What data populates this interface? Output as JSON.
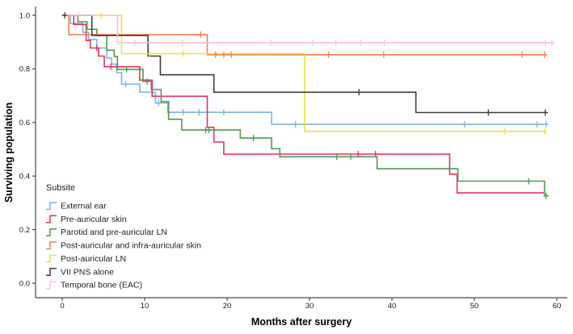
{
  "figure": {
    "background": "#ffffff",
    "axis_color": "#4a4a4a"
  },
  "chart_data": {
    "type": "line",
    "subtype": "kaplan-meier-step",
    "title": "",
    "xlabel": "Months after surgery",
    "ylabel": "Surviving population",
    "legend_title": "Subsite",
    "legend_position": "lower-left-inside",
    "grid": false,
    "x_ticks": [
      0,
      10,
      20,
      30,
      40,
      50,
      60
    ],
    "y_ticks": [
      0.0,
      0.2,
      0.4,
      0.6,
      0.8,
      1.0
    ],
    "xlim": [
      -3,
      62
    ],
    "ylim": [
      -0.05,
      1.05
    ],
    "series": [
      {
        "label": "External ear",
        "color": "#7FB2E5",
        "steps": [
          [
            0,
            1.0
          ],
          [
            1.0,
            0.97
          ],
          [
            2.5,
            0.936
          ],
          [
            3.2,
            0.91
          ],
          [
            4.2,
            0.878
          ],
          [
            5.4,
            0.84
          ],
          [
            6.0,
            0.818
          ],
          [
            6.6,
            0.786
          ],
          [
            7.2,
            0.743
          ],
          [
            9.4,
            0.713
          ],
          [
            11.3,
            0.673
          ],
          [
            12.8,
            0.638
          ],
          [
            25.4,
            0.593
          ]
        ],
        "censor_months": [
          7.7,
          11.7,
          14.7,
          16.6,
          19.6,
          28.3,
          48.8,
          57.6,
          58.7
        ],
        "end_month": 58.8
      },
      {
        "label": "Pre-auricular skin",
        "color": "#E8315B",
        "steps": [
          [
            0,
            1.0
          ],
          [
            1.4,
            0.966
          ],
          [
            2.9,
            0.906
          ],
          [
            3.4,
            0.878
          ],
          [
            4.4,
            0.848
          ],
          [
            5.1,
            0.808
          ],
          [
            9.4,
            0.758
          ],
          [
            10.9,
            0.698
          ],
          [
            17.6,
            0.582
          ],
          [
            18.4,
            0.527
          ],
          [
            19.6,
            0.482
          ],
          [
            47.0,
            0.407
          ],
          [
            47.9,
            0.337
          ]
        ],
        "censor_months": [
          4.2,
          5.9,
          35.9,
          38.0
        ],
        "end_month": 58.5
      },
      {
        "label": "Parotid and pre-auricular LN",
        "color": "#4E9B51",
        "steps": [
          [
            0,
            1.0
          ],
          [
            1.9,
            0.976
          ],
          [
            3.0,
            0.948
          ],
          [
            4.2,
            0.925
          ],
          [
            5.4,
            0.87
          ],
          [
            6.3,
            0.846
          ],
          [
            6.7,
            0.798
          ],
          [
            9.8,
            0.753
          ],
          [
            10.8,
            0.723
          ],
          [
            12.0,
            0.678
          ],
          [
            12.9,
            0.612
          ],
          [
            14.5,
            0.572
          ],
          [
            21.6,
            0.542
          ],
          [
            25.4,
            0.502
          ],
          [
            26.4,
            0.472
          ],
          [
            38.2,
            0.427
          ],
          [
            48.0,
            0.381
          ],
          [
            58.5,
            0.326
          ]
        ],
        "censor_months": [
          7.8,
          10.3,
          17.4,
          17.8,
          23.2,
          33.3,
          35.0,
          56.6,
          58.7
        ],
        "end_month": 58.8
      },
      {
        "label": "Post-auricular and infra-auricular skin",
        "color": "#F5814E",
        "steps": [
          [
            0,
            1.0
          ],
          [
            0.8,
            0.928
          ],
          [
            17.6,
            0.853
          ]
        ],
        "censor_months": [
          16.8,
          18.6,
          19.6,
          20.5,
          32.3,
          39.0,
          55.8,
          58.5
        ],
        "end_month": 58.8
      },
      {
        "label": "Post-auricular LN",
        "color": "#EFE23B",
        "steps": [
          [
            0,
            1.0
          ],
          [
            7.2,
            0.857
          ],
          [
            29.4,
            0.567
          ]
        ],
        "censor_months": [
          4.7,
          10.6,
          14.7,
          53.7,
          58.5
        ],
        "end_month": 58.8
      },
      {
        "label": "VII PNS alone",
        "color": "#3E3E3E",
        "steps": [
          [
            0,
            1.0
          ],
          [
            3.6,
            0.925
          ],
          [
            10.4,
            0.848
          ],
          [
            11.9,
            0.778
          ],
          [
            18.4,
            0.713
          ],
          [
            42.9,
            0.637
          ]
        ],
        "censor_months": [
          0.3,
          36.0,
          51.7,
          58.6
        ],
        "end_month": 58.8
      },
      {
        "label": "Temporal bone (EAC)",
        "color": "#F9C3D8",
        "steps": [
          [
            0,
            1.0
          ],
          [
            6.7,
            0.898
          ]
        ],
        "censor_months": [
          2.0,
          8.8,
          14.6,
          25.3,
          30.4,
          33.2,
          36.2,
          39.1,
          58.6,
          59.4
        ],
        "end_month": 59.7
      }
    ]
  }
}
